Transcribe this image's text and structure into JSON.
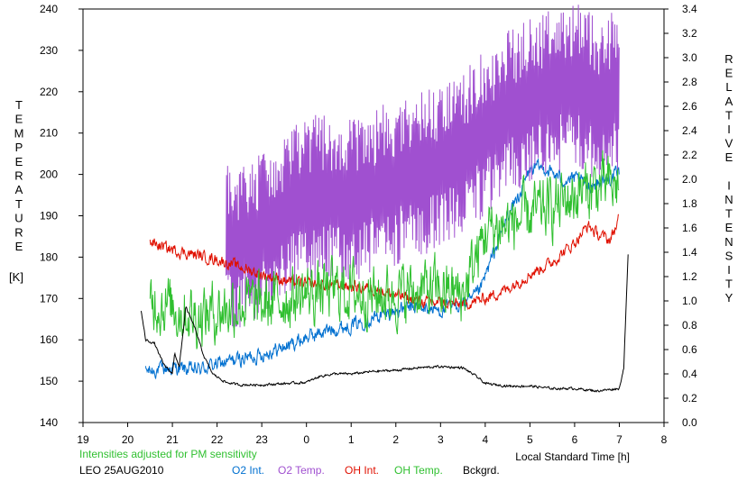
{
  "chart_data": {
    "type": "line",
    "left_axis": {
      "label_letters": [
        "T",
        "E",
        "M",
        "P",
        "E",
        "R",
        "A",
        "T",
        "U",
        "R",
        "E"
      ],
      "unit": "[K]",
      "range": [
        140,
        240
      ],
      "ticks": [
        "140",
        "150",
        "160",
        "170",
        "180",
        "190",
        "200",
        "210",
        "220",
        "230",
        "240"
      ]
    },
    "right_axis": {
      "label_word1": [
        "R",
        "E",
        "L",
        "A",
        "T",
        "I",
        "V",
        "E"
      ],
      "label_word2": [
        "I",
        "N",
        "T",
        "E",
        "N",
        "S",
        "I",
        "T",
        "Y"
      ],
      "range": [
        0.0,
        3.4
      ],
      "ticks": [
        "0.0",
        "0.2",
        "0.4",
        "0.6",
        "0.8",
        "1.0",
        "1.2",
        "1.4",
        "1.6",
        "1.8",
        "2.0",
        "2.2",
        "2.4",
        "2.6",
        "2.8",
        "3.0",
        "3.2",
        "3.4"
      ]
    },
    "x_axis": {
      "label": "Local Standard Time [h]",
      "range": [
        19,
        32
      ],
      "ticks": [
        "19",
        "20",
        "21",
        "22",
        "23",
        "0",
        "1",
        "2",
        "3",
        "4",
        "5",
        "6",
        "7",
        "8"
      ]
    },
    "note": "Intensities adjusted for PM sensitivity",
    "station": "LEO 25AUG2010",
    "grid": false,
    "series": [
      {
        "name": "O2 Int.",
        "axis": "right",
        "color": "#0070d0",
        "noise": 0.05,
        "points": [
          [
            20.4,
            0.42
          ],
          [
            21,
            0.45
          ],
          [
            21.5,
            0.43
          ],
          [
            22,
            0.48
          ],
          [
            22.5,
            0.52
          ],
          [
            23,
            0.56
          ],
          [
            23.5,
            0.62
          ],
          [
            24,
            0.7
          ],
          [
            24.5,
            0.76
          ],
          [
            25,
            0.8
          ],
          [
            25.5,
            0.86
          ],
          [
            26,
            0.92
          ],
          [
            26.5,
            0.95
          ],
          [
            27,
            0.92
          ],
          [
            27.5,
            0.98
          ],
          [
            27.7,
            1.0
          ],
          [
            27.9,
            1.1
          ],
          [
            28.2,
            1.4
          ],
          [
            28.5,
            1.7
          ],
          [
            28.8,
            1.9
          ],
          [
            29,
            2.08
          ],
          [
            29.3,
            2.1
          ],
          [
            29.5,
            2.05
          ],
          [
            29.7,
            2.0
          ],
          [
            30,
            2.0
          ],
          [
            30.3,
            1.95
          ],
          [
            30.6,
            1.98
          ],
          [
            31,
            2.05
          ]
        ]
      },
      {
        "name": "O2 Temp.",
        "axis": "left",
        "color": "#a050d0",
        "noise": 20,
        "points": [
          [
            22.2,
            182
          ],
          [
            22.6,
            183
          ],
          [
            23,
            185
          ],
          [
            23.5,
            190
          ],
          [
            24,
            194
          ],
          [
            24.5,
            195
          ],
          [
            25,
            194
          ],
          [
            25.5,
            196
          ],
          [
            26,
            198
          ],
          [
            26.5,
            200
          ],
          [
            27,
            202
          ],
          [
            27.5,
            205
          ],
          [
            28,
            210
          ],
          [
            28.5,
            215
          ],
          [
            29,
            218
          ],
          [
            29.5,
            220
          ],
          [
            30,
            222
          ],
          [
            30.5,
            218
          ],
          [
            31,
            220
          ]
        ]
      },
      {
        "name": "OH Int.",
        "axis": "right",
        "color": "#e01000",
        "noise": 0.04,
        "points": [
          [
            20.5,
            1.48
          ],
          [
            21,
            1.42
          ],
          [
            21.5,
            1.38
          ],
          [
            22,
            1.34
          ],
          [
            22.5,
            1.28
          ],
          [
            23,
            1.22
          ],
          [
            23.5,
            1.17
          ],
          [
            24,
            1.14
          ],
          [
            24.5,
            1.13
          ],
          [
            25,
            1.12
          ],
          [
            25.5,
            1.1
          ],
          [
            26,
            1.05
          ],
          [
            26.5,
            1.0
          ],
          [
            27,
            0.98
          ],
          [
            27.5,
            0.97
          ],
          [
            28,
            1.02
          ],
          [
            28.5,
            1.1
          ],
          [
            29,
            1.22
          ],
          [
            29.5,
            1.32
          ],
          [
            30,
            1.48
          ],
          [
            30.3,
            1.62
          ],
          [
            30.5,
            1.55
          ],
          [
            30.8,
            1.5
          ],
          [
            31,
            1.68
          ]
        ]
      },
      {
        "name": "OH Temp.",
        "axis": "left",
        "color": "#30c030",
        "noise": 6,
        "points": [
          [
            20.5,
            170
          ],
          [
            21,
            168
          ],
          [
            21.5,
            166
          ],
          [
            22,
            167
          ],
          [
            22.5,
            169
          ],
          [
            23,
            168
          ],
          [
            23.5,
            170
          ],
          [
            24,
            171
          ],
          [
            24.5,
            172
          ],
          [
            25,
            172
          ],
          [
            25.5,
            171
          ],
          [
            26,
            171
          ],
          [
            26.5,
            172
          ],
          [
            27,
            172
          ],
          [
            27.5,
            171
          ],
          [
            28,
            186
          ],
          [
            28.5,
            188
          ],
          [
            29,
            190
          ],
          [
            29.5,
            192
          ],
          [
            30,
            195
          ],
          [
            30.5,
            197
          ],
          [
            31,
            197
          ]
        ]
      },
      {
        "name": "Bckgrd.",
        "axis": "right",
        "color": "#000000",
        "noise": 0.008,
        "points": [
          [
            20.3,
            0.92
          ],
          [
            20.4,
            0.68
          ],
          [
            20.6,
            0.65
          ],
          [
            20.8,
            0.48
          ],
          [
            21,
            0.4
          ],
          [
            21.05,
            0.58
          ],
          [
            21.15,
            0.45
          ],
          [
            21.3,
            0.95
          ],
          [
            21.5,
            0.78
          ],
          [
            21.7,
            0.55
          ],
          [
            21.9,
            0.4
          ],
          [
            22.2,
            0.33
          ],
          [
            22.5,
            0.31
          ],
          [
            23,
            0.31
          ],
          [
            23.5,
            0.32
          ],
          [
            24,
            0.33
          ],
          [
            24.3,
            0.38
          ],
          [
            24.6,
            0.4
          ],
          [
            25,
            0.4
          ],
          [
            25.5,
            0.42
          ],
          [
            26,
            0.43
          ],
          [
            26.5,
            0.45
          ],
          [
            27,
            0.46
          ],
          [
            27.5,
            0.45
          ],
          [
            27.8,
            0.38
          ],
          [
            28,
            0.32
          ],
          [
            28.5,
            0.3
          ],
          [
            29,
            0.3
          ],
          [
            29.5,
            0.28
          ],
          [
            30,
            0.28
          ],
          [
            30.5,
            0.26
          ],
          [
            31,
            0.28
          ],
          [
            31.1,
            0.45
          ],
          [
            31.2,
            1.42
          ]
        ]
      }
    ]
  }
}
